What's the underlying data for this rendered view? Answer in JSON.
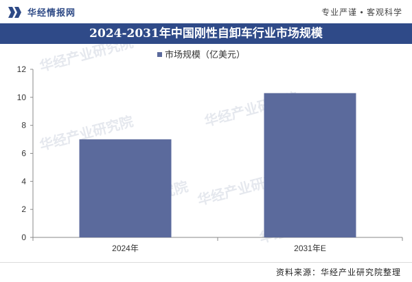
{
  "header": {
    "brand": "华经情报网",
    "slogan": "专业严谨 • 客观科学"
  },
  "footer": {
    "source": "资料来源：华经产业研究院整理"
  },
  "watermarks": [
    "华经产业研究院",
    "华经产业研究院",
    "华经产业研究院",
    "华经产业研究院",
    "华经产业研究院",
    "华经产业研究院"
  ],
  "chart_data": {
    "type": "bar",
    "title": "2024-2031年中国刚性自卸车行业市场规模",
    "categories": [
      "2024年",
      "2031年E"
    ],
    "series": [
      {
        "name": "市场规模（亿美元）",
        "values": [
          7.0,
          10.3
        ]
      }
    ],
    "ylim": [
      0,
      12
    ],
    "yticks": [
      0,
      2,
      4,
      6,
      8,
      10,
      12
    ],
    "grid": false,
    "legend": "top-left",
    "colors": {
      "bar": "#5b6a9c",
      "axis": "#888888",
      "title_bg": "#2f4a88"
    }
  }
}
